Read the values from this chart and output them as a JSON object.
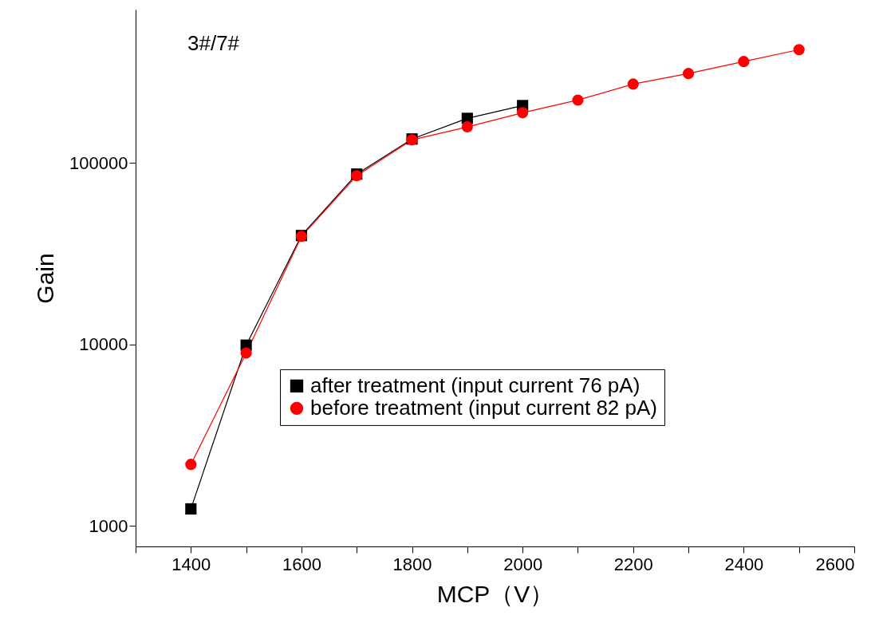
{
  "chart_data": {
    "type": "line",
    "xlabel": "MCP（V）",
    "ylabel": "Gain",
    "annotations": [
      "3#/7#"
    ],
    "x": [
      1400,
      1500,
      1600,
      1700,
      1800,
      1900,
      2000,
      2100,
      2200,
      2300,
      2400,
      2500
    ],
    "series": [
      {
        "name": "after treatment (input current 76 pA)",
        "color": "#000000",
        "marker": "square",
        "x": [
          1400,
          1500,
          1600,
          1700,
          1800,
          1900,
          2000
        ],
        "values": [
          1240,
          9900,
          39800,
          86800,
          135500,
          176000,
          207000
        ]
      },
      {
        "name": "before treatment (input current 82 pA)",
        "color": "#ff0000",
        "marker": "circle",
        "values": [
          2180,
          8960,
          39400,
          85000,
          134000,
          158000,
          189000,
          222000,
          272000,
          311000,
          362000,
          421000
        ]
      }
    ],
    "log": "y",
    "xlim": [
      1300,
      2600
    ],
    "ylim": [
      770,
      700000
    ],
    "xticks": [
      {
        "value": 1300,
        "label": null
      },
      1400,
      {
        "value": 1500,
        "label": null
      },
      1600,
      {
        "value": 1700,
        "label": null
      },
      1800,
      {
        "value": 1900,
        "label": null
      },
      2000,
      {
        "value": 2100,
        "label": null
      },
      2200,
      {
        "value": 2300,
        "label": null
      },
      2400,
      {
        "value": 2500,
        "label": null
      },
      2600
    ],
    "yticks": [
      1000,
      10000,
      100000
    ],
    "grid": false,
    "legend": "right",
    "line_style": "solid"
  }
}
